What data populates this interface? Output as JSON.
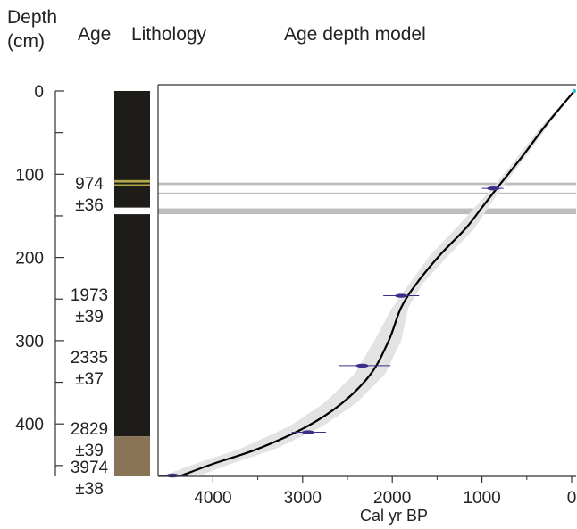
{
  "headers": {
    "depth_line1": "Depth",
    "depth_line2": "(cm)",
    "age": "Age",
    "lithology": "Lithology",
    "model": "Age depth model"
  },
  "colors": {
    "sediment_dark": "#1e1c19",
    "sediment_base": "#8a7458",
    "tephra_olive": "#b0a74a",
    "hiatus_white": "#ffffff",
    "band_gray": "#bdbdbd",
    "envelope": "#e3e3e3",
    "model_line": "#000000",
    "dates": "#3a2e8a",
    "surface_marker": "#2fc4cf"
  },
  "age_labels": [
    {
      "value": "974",
      "err": "±36"
    },
    {
      "value": "1973",
      "err": "±39"
    },
    {
      "value": "2335",
      "err": "±37"
    },
    {
      "value": "2829",
      "err": "±39"
    },
    {
      "value": "3974",
      "err": "±38"
    }
  ],
  "lithology": [
    {
      "from": 0,
      "to": 415,
      "type": "dark"
    },
    {
      "from": 107,
      "to": 110,
      "type": "olive"
    },
    {
      "from": 112,
      "to": 114,
      "type": "olive"
    },
    {
      "from": 140,
      "to": 148,
      "type": "white"
    },
    {
      "from": 415,
      "to": 465,
      "type": "base"
    }
  ],
  "chart_data": {
    "type": "line",
    "title": "Age depth model",
    "xlabel": "Cal yr BP",
    "ylabel": "Depth (cm)",
    "xlim": [
      4650,
      -50
    ],
    "ylim": [
      0,
      465
    ],
    "x_ticks": [
      "4000",
      "3000",
      "2000",
      "1000",
      "0"
    ],
    "y_ticks": [
      "0",
      "100",
      "200",
      "300",
      "400"
    ],
    "y_minor_ticks": [
      50,
      150,
      250,
      350,
      450
    ],
    "grid": false,
    "series": [
      {
        "points": [
          [
            -30,
            0
          ],
          [
            280,
            40
          ],
          [
            560,
            80
          ],
          [
            820,
            115
          ],
          [
            1000,
            140
          ],
          [
            1180,
            165
          ],
          [
            1450,
            195
          ],
          [
            1720,
            230
          ],
          [
            1900,
            260
          ],
          [
            2040,
            300
          ],
          [
            2240,
            340
          ],
          [
            2560,
            375
          ],
          [
            2950,
            403
          ],
          [
            3500,
            430
          ],
          [
            4000,
            448
          ],
          [
            4350,
            462
          ]
        ]
      }
    ],
    "uncertainty_band": {
      "lower": [
        [
          -30,
          0
        ],
        [
          250,
          40
        ],
        [
          520,
          80
        ],
        [
          770,
          115
        ],
        [
          930,
          140
        ],
        [
          1080,
          165
        ],
        [
          1350,
          195
        ],
        [
          1650,
          230
        ],
        [
          1820,
          260
        ],
        [
          1900,
          300
        ],
        [
          2080,
          340
        ],
        [
          2400,
          375
        ],
        [
          2780,
          403
        ],
        [
          3300,
          430
        ],
        [
          3800,
          448
        ],
        [
          4150,
          462
        ]
      ],
      "upper": [
        [
          -30,
          0
        ],
        [
          320,
          40
        ],
        [
          610,
          80
        ],
        [
          870,
          115
        ],
        [
          1080,
          140
        ],
        [
          1290,
          165
        ],
        [
          1560,
          195
        ],
        [
          1800,
          230
        ],
        [
          2000,
          260
        ],
        [
          2200,
          300
        ],
        [
          2420,
          340
        ],
        [
          2760,
          375
        ],
        [
          3150,
          403
        ],
        [
          3700,
          430
        ],
        [
          4200,
          448
        ],
        [
          4550,
          462
        ]
      ]
    },
    "dates": [
      {
        "age": 874,
        "depth": 117,
        "xmin": 760,
        "xmax": 1000
      },
      {
        "age": 1900,
        "depth": 246,
        "xmin": 1700,
        "xmax": 2100
      },
      {
        "age": 2335,
        "depth": 330,
        "xmin": 2020,
        "xmax": 2600
      },
      {
        "age": 2940,
        "depth": 410,
        "xmin": 2740,
        "xmax": 3120
      },
      {
        "age": 4450,
        "depth": 462,
        "xmin": 4280,
        "xmax": 4600
      }
    ],
    "surface_point": {
      "age": -30,
      "depth": 0
    },
    "horizontal_bands": [
      {
        "from": 110,
        "to": 113
      },
      {
        "from": 122,
        "to": 123
      },
      {
        "from": 141,
        "to": 148
      }
    ]
  }
}
